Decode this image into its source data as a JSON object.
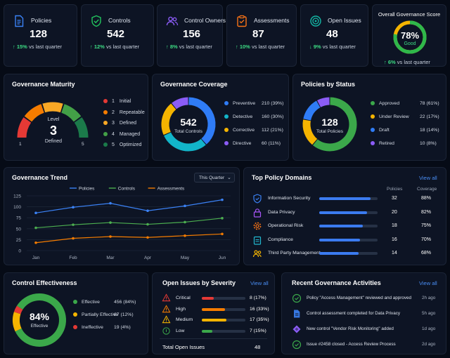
{
  "kpis": [
    {
      "title": "Policies",
      "value": "128",
      "delta": "15%",
      "delta_suffix": "vs last quarter",
      "arrow": "↑",
      "icon": "document-icon",
      "color": "#3b82f6"
    },
    {
      "title": "Controls",
      "value": "542",
      "delta": "12%",
      "delta_suffix": "vs last quarter",
      "arrow": "↑",
      "icon": "shield-check-icon",
      "color": "#22c55e"
    },
    {
      "title": "Control Owners",
      "value": "156",
      "delta": "8%",
      "delta_suffix": "vs last quarter",
      "arrow": "↑",
      "icon": "users-icon",
      "color": "#8b5cf6"
    },
    {
      "title": "Assessments",
      "value": "87",
      "delta": "10%",
      "delta_suffix": "vs last quarter",
      "arrow": "↑",
      "icon": "clipboard-icon",
      "color": "#f97316"
    },
    {
      "title": "Open Issues",
      "value": "48",
      "delta": "9%",
      "delta_suffix": "vs last quarter",
      "arrow": "↓",
      "icon": "target-icon",
      "color": "#14b8a6"
    }
  ],
  "overall": {
    "title": "Overall Governance Score",
    "value": "78%",
    "status": "Good",
    "delta": "6%",
    "delta_suffix": "vs last quarter",
    "arrow": "↑",
    "score": 0.78
  },
  "maturity": {
    "title": "Governance Maturity",
    "level_label": "Level",
    "level": "3",
    "level_name": "Defined",
    "scale_min": "1",
    "scale_max": "5",
    "levels": [
      {
        "num": "1",
        "name": "Initial",
        "color": "#e53935"
      },
      {
        "num": "2",
        "name": "Repeatable",
        "color": "#f57c00"
      },
      {
        "num": "3",
        "name": "Defined",
        "color": "#f9a825"
      },
      {
        "num": "4",
        "name": "Managed",
        "color": "#43a047"
      },
      {
        "num": "5",
        "name": "Optimized",
        "color": "#1b7a4a"
      }
    ]
  },
  "coverage": {
    "title": "Governance Coverage",
    "center_value": "542",
    "center_label": "Total Controls",
    "items": [
      {
        "name": "Preventive",
        "value": "210 (39%)",
        "share": 39,
        "color": "#2f7cf6"
      },
      {
        "name": "Detective",
        "value": "160 (30%)",
        "share": 30,
        "color": "#12b5c9"
      },
      {
        "name": "Corrective",
        "value": "112 (21%)",
        "share": 21,
        "color": "#f5b400"
      },
      {
        "name": "Directive",
        "value": "60 (11%)",
        "share": 11,
        "color": "#8b5cf6"
      }
    ]
  },
  "policies_status": {
    "title": "Policies by Status",
    "center_value": "128",
    "center_label": "Total Policies",
    "items": [
      {
        "name": "Approved",
        "value": "78 (61%)",
        "share": 61,
        "color": "#3ba84a"
      },
      {
        "name": "Under Review",
        "value": "22 (17%)",
        "share": 17,
        "color": "#f5b400"
      },
      {
        "name": "Draft",
        "value": "18 (14%)",
        "share": 14,
        "color": "#2f7cf6"
      },
      {
        "name": "Retired",
        "value": "10 (8%)",
        "share": 8,
        "color": "#8b5cf6"
      }
    ]
  },
  "trend": {
    "title": "Governance Trend",
    "dropdown": "This Quarter",
    "chart_data": {
      "type": "line",
      "categories": [
        "Jan",
        "Feb",
        "Mar",
        "Apr",
        "May",
        "Jun"
      ],
      "ylim": [
        0,
        125
      ],
      "yticks": [
        "0",
        "25",
        "50",
        "75",
        "100",
        "125"
      ],
      "series": [
        {
          "name": "Policies",
          "color": "#3b82f6",
          "values": [
            86,
            99,
            108,
            91,
            102,
            116
          ]
        },
        {
          "name": "Controls",
          "color": "#4caf50",
          "values": [
            52,
            59,
            64,
            60,
            65,
            74
          ]
        },
        {
          "name": "Assessments",
          "color": "#f57c00",
          "values": [
            18,
            28,
            32,
            30,
            34,
            38
          ]
        }
      ]
    }
  },
  "domains": {
    "title": "Top Policy Domains",
    "view_all": "View all",
    "col_policies": "Policies",
    "col_coverage": "Coverage",
    "rows": [
      {
        "name": "Information Security",
        "policies": "32",
        "coverage": "88%",
        "fill": 0.88,
        "icon": "shield-icon",
        "color": "#3b82f6"
      },
      {
        "name": "Data Privacy",
        "policies": "20",
        "coverage": "82%",
        "fill": 0.82,
        "icon": "lock-icon",
        "color": "#a855f7"
      },
      {
        "name": "Operational Risk",
        "policies": "18",
        "coverage": "75%",
        "fill": 0.75,
        "icon": "gear-icon",
        "color": "#f97316"
      },
      {
        "name": "Compliance",
        "policies": "16",
        "coverage": "70%",
        "fill": 0.7,
        "icon": "clipboard-icon",
        "color": "#22b8cf"
      },
      {
        "name": "Third Party Management",
        "policies": "14",
        "coverage": "68%",
        "fill": 0.68,
        "icon": "people-icon",
        "color": "#f5b400"
      }
    ]
  },
  "effectiveness": {
    "title": "Control Effectiveness",
    "center_value": "84%",
    "center_label": "Effective",
    "items": [
      {
        "name": "Effective",
        "value": "456 (84%)",
        "share": 84,
        "color": "#3ba84a"
      },
      {
        "name": "Partially Effective",
        "value": "67 (12%)",
        "share": 12,
        "color": "#f5b400"
      },
      {
        "name": "Ineffective",
        "value": "19 (4%)",
        "share": 4,
        "color": "#e53935"
      }
    ]
  },
  "issues": {
    "title": "Open Issues by Severity",
    "view_all": "View all",
    "rows": [
      {
        "name": "Critical",
        "value": "8 (17%)",
        "fill": 0.17,
        "color": "#e53935"
      },
      {
        "name": "High",
        "value": "16 (33%)",
        "fill": 0.33,
        "color": "#f57c00"
      },
      {
        "name": "Medium",
        "value": "17 (35%)",
        "fill": 0.35,
        "color": "#f5b400"
      },
      {
        "name": "Low",
        "value": "7 (15%)",
        "fill": 0.15,
        "color": "#3ba84a"
      }
    ],
    "total_label": "Total Open Issues",
    "total": "48"
  },
  "activities": {
    "title": "Recent Governance Activities",
    "view_all": "View all",
    "rows": [
      {
        "text": "Policy \"Access Management\" reviewed and approved",
        "time": "2h ago",
        "icon": "check-circle-icon",
        "color": "#3ba84a"
      },
      {
        "text": "Control assessment completed for Data Privacy",
        "time": "5h ago",
        "icon": "document-icon",
        "color": "#3b82f6"
      },
      {
        "text": "New control \"Vendor Risk Monitoring\" added",
        "time": "1d ago",
        "icon": "diamond-icon",
        "color": "#8b5cf6"
      },
      {
        "text": "Issue #2458 closed - Access Review Process",
        "time": "2d ago",
        "icon": "check-circle-icon",
        "color": "#3ba84a"
      }
    ]
  }
}
